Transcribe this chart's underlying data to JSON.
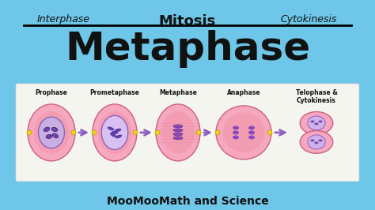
{
  "bg_color": "#6ec6e8",
  "title_top_left": "Interphase",
  "title_top_center": "Mitosis",
  "title_top_right": "Cytokinesis",
  "title_main": "Metaphase",
  "subtitle_bottom": "MooMooMath and Science",
  "panel_bg": "#f5f5f0",
  "stages": [
    "Prophase",
    "Prometaphase",
    "Metaphase",
    "Anaphase",
    "Telophase &\nCytokinesis"
  ],
  "cell_color_outer": "#f5a0b5",
  "cell_color_inner": "#e87090",
  "nucleus_color": "#9060c0",
  "arrow_color": "#9060c0",
  "line_color": "#000000",
  "font_color_dark": "#111111",
  "chrom_angles": [
    -25,
    15,
    -10,
    30
  ]
}
